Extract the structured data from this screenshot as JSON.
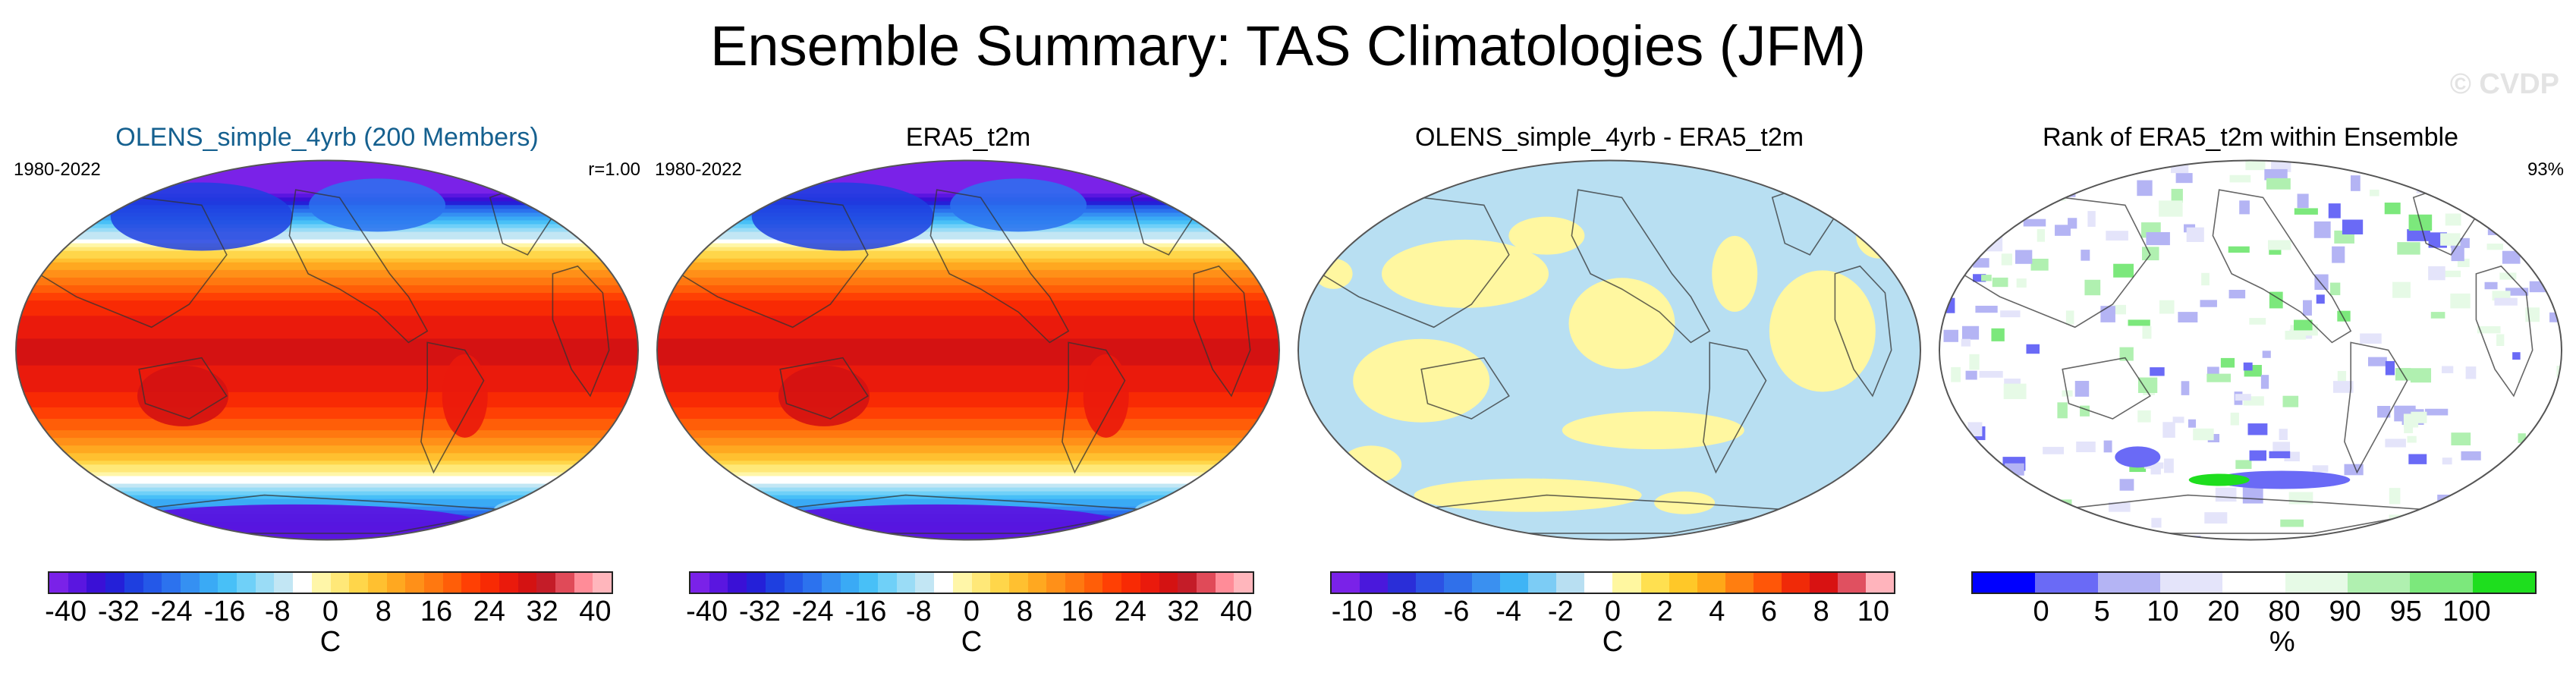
{
  "title": "Ensemble Summary: TAS Climatologies (JFM)",
  "watermark": "© CVDP",
  "panels": [
    {
      "title": "OLENS_simple_4yrb (200 Members)",
      "left": "1980-2022",
      "right": "r=1.00",
      "unit": "C",
      "ticks": [
        "-40",
        "-32",
        "-24",
        "-16",
        "-8",
        "0",
        "8",
        "16",
        "24",
        "32",
        "40"
      ]
    },
    {
      "title": "ERA5_t2m",
      "left": "1980-2022",
      "right": "",
      "unit": "C",
      "ticks": [
        "-40",
        "-32",
        "-24",
        "-16",
        "-8",
        "0",
        "8",
        "16",
        "24",
        "32",
        "40"
      ]
    },
    {
      "title": "OLENS_simple_4yrb - ERA5_t2m",
      "left": "",
      "right": "",
      "unit": "C",
      "ticks": [
        "-10",
        "-8",
        "-6",
        "-4",
        "-2",
        "0",
        "2",
        "4",
        "6",
        "8",
        "10"
      ]
    },
    {
      "title": "Rank of ERA5_t2m within Ensemble",
      "left": "",
      "right": "93%",
      "unit": "%",
      "ticks": [
        "0",
        "5",
        "10",
        "20",
        "80",
        "90",
        "95",
        "100"
      ]
    }
  ],
  "chart_data": [
    {
      "type": "heatmap",
      "title": "OLENS_simple_4yrb (200 Members)",
      "period": "1980-2022",
      "pattern_correlation": 1.0,
      "colorbar": {
        "label": "C",
        "min": -40,
        "max": 40,
        "step": 4,
        "ticks": [
          -40,
          -32,
          -24,
          -16,
          -8,
          0,
          8,
          16,
          24,
          32,
          40
        ]
      },
      "colors": [
        "#7a22e8",
        "#5a16e0",
        "#3a10d6",
        "#2420d8",
        "#1e3fe0",
        "#2458e8",
        "#2c72ee",
        "#3590f2",
        "#3aaaf5",
        "#48c0f7",
        "#6fd0f8",
        "#9adcf6",
        "#c2e6f4",
        "#ffffff",
        "#fff6a8",
        "#ffe878",
        "#ffd64a",
        "#ffc030",
        "#ffa820",
        "#ff9018",
        "#ff7810",
        "#ff5e08",
        "#ff4004",
        "#f82a04",
        "#ea1a0c",
        "#d41212",
        "#c41c28",
        "#e04a58",
        "#ff8c98",
        "#ffb6bc"
      ]
    },
    {
      "type": "heatmap",
      "title": "ERA5_t2m",
      "period": "1980-2022",
      "colorbar": {
        "label": "C",
        "min": -40,
        "max": 40,
        "step": 4,
        "ticks": [
          -40,
          -32,
          -24,
          -16,
          -8,
          0,
          8,
          16,
          24,
          32,
          40
        ]
      },
      "colors": [
        "#7a22e8",
        "#5a16e0",
        "#3a10d6",
        "#2420d8",
        "#1e3fe0",
        "#2458e8",
        "#2c72ee",
        "#3590f2",
        "#3aaaf5",
        "#48c0f7",
        "#6fd0f8",
        "#9adcf6",
        "#c2e6f4",
        "#ffffff",
        "#fff6a8",
        "#ffe878",
        "#ffd64a",
        "#ffc030",
        "#ffa820",
        "#ff9018",
        "#ff7810",
        "#ff5e08",
        "#ff4004",
        "#f82a04",
        "#ea1a0c",
        "#d41212",
        "#c41c28",
        "#e04a58",
        "#ff8c98",
        "#ffb6bc"
      ]
    },
    {
      "type": "heatmap",
      "title": "OLENS_simple_4yrb - ERA5_t2m",
      "colorbar": {
        "label": "C",
        "min": -10,
        "max": 10,
        "step": 1,
        "ticks": [
          -10,
          -8,
          -6,
          -4,
          -2,
          0,
          2,
          4,
          6,
          8,
          10
        ]
      },
      "colors": [
        "#7a22e8",
        "#4a18dc",
        "#2a2ed8",
        "#2c52e4",
        "#3070ea",
        "#3a90f0",
        "#3fb4f5",
        "#7cccf5",
        "#b8dff2",
        "#ffffff",
        "#fff7a0",
        "#ffe050",
        "#ffc828",
        "#ffa818",
        "#ff7e10",
        "#ff5608",
        "#f02a08",
        "#d81212",
        "#e05060",
        "#ffb4bc"
      ],
      "values_shown": "differences mostly between -1 and 1 (pale blue and pale yellow)"
    },
    {
      "type": "heatmap",
      "title": "Rank of ERA5_t2m within Ensemble",
      "percent_within_range": 93,
      "colorbar": {
        "label": "%",
        "bounds": [
          0,
          5,
          10,
          20,
          80,
          90,
          95,
          100
        ],
        "ticks": [
          0,
          5,
          10,
          20,
          80,
          90,
          95,
          100
        ]
      },
      "colors": [
        "#0000ff",
        "#6a6af6",
        "#b4b4f4",
        "#e4e4fa",
        "#ffffff",
        "#e6fae6",
        "#b0f0b0",
        "#7ce87c",
        "#1ede1e"
      ]
    }
  ]
}
